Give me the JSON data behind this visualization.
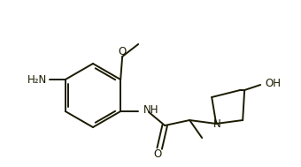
{
  "bg_color": "#ffffff",
  "bond_color": "#1a1a00",
  "label_color": "#1a1a00",
  "lw": 1.4,
  "figsize": [
    3.4,
    1.89
  ],
  "dpi": 100,
  "xlim": [
    0,
    340
  ],
  "ylim": [
    0,
    189
  ]
}
